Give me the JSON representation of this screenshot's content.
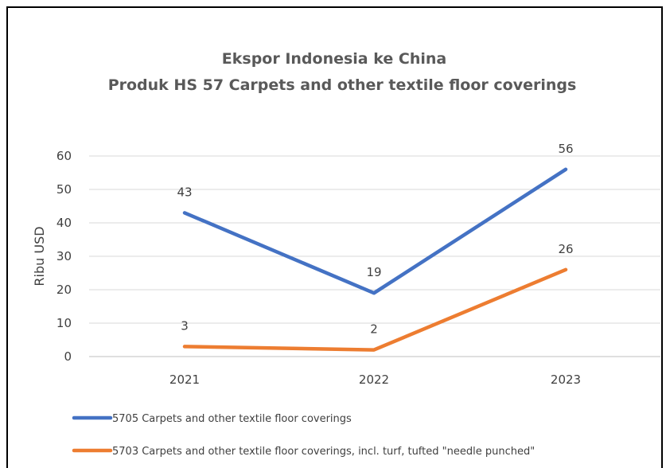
{
  "chart_data": {
    "type": "line",
    "title": "Ekspor Indonesia ke China",
    "subtitle": "Produk HS 57 Carpets and other textile floor coverings",
    "ylabel": "Ribu USD",
    "xlabel": "",
    "categories": [
      "2021",
      "2022",
      "2023"
    ],
    "ylim": [
      0,
      60
    ],
    "yticks": [
      0,
      10,
      20,
      30,
      40,
      50,
      60
    ],
    "grid": true,
    "legend_position": "bottom",
    "series": [
      {
        "name": "5705 Carpets and other textile floor coverings",
        "values": [
          43,
          19,
          56
        ],
        "color": "#4472C4"
      },
      {
        "name": "5703 Carpets and other textile floor coverings, incl. turf, tufted \"needle punched\"",
        "values": [
          3,
          2,
          26
        ],
        "color": "#ED7D31"
      }
    ]
  }
}
